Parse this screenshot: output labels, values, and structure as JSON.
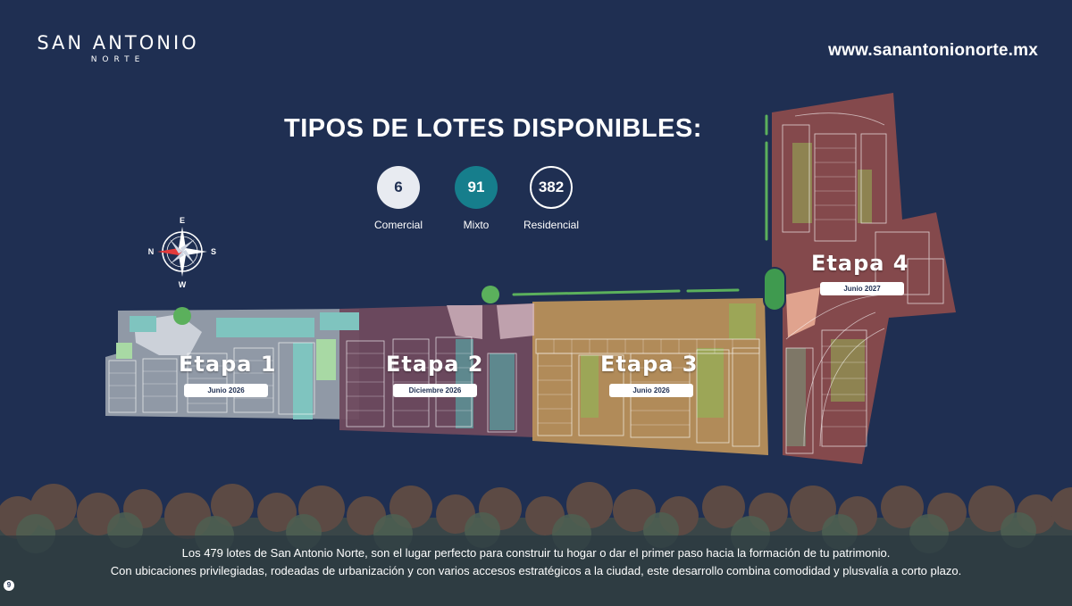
{
  "brand": {
    "name": "SAN ANTONIO",
    "sub": "NORTE"
  },
  "website": "www.sanantonionorte.mx",
  "title": "TIPOS DE LOTES DISPONIBLES:",
  "stats": [
    {
      "value": "6",
      "label": "Comercial",
      "color": "#e8ebf1"
    },
    {
      "value": "91",
      "label": "Mixto",
      "color": "#167e8c"
    },
    {
      "value": "382",
      "label": "Residencial",
      "color": "#ffffff"
    }
  ],
  "compass": {
    "north": "N",
    "south": "S",
    "east": "E",
    "west": "W"
  },
  "etapas": [
    {
      "name": "Etapa 1",
      "date": "Junio 2026",
      "color": "#9aa3ae"
    },
    {
      "name": "Etapa 2",
      "date": "Diciembre 2026",
      "color": "#6f4a5e"
    },
    {
      "name": "Etapa 3",
      "date": "Junio 2026",
      "color": "#b9905a"
    },
    {
      "name": "Etapa 4",
      "date": "Junio 2027",
      "color": "#8a4b4c"
    }
  ],
  "description": [
    "Los 479 lotes de San Antonio Norte, son el lugar perfecto para construir tu hogar o dar el primer paso hacia la formación de tu patrimonio.",
    "Con ubicaciones privilegiadas, rodeadas de urbanización y con varios accesos estratégicos a la ciudad, este desarrollo combina comodidad y plusvalía a corto plazo."
  ],
  "page_number": "9",
  "colors": {
    "background": "#1f2f52",
    "green_area": "#5bb05c",
    "mixed_lot": "#7fc4bf",
    "commercial_lot": "#d7dbe2"
  }
}
